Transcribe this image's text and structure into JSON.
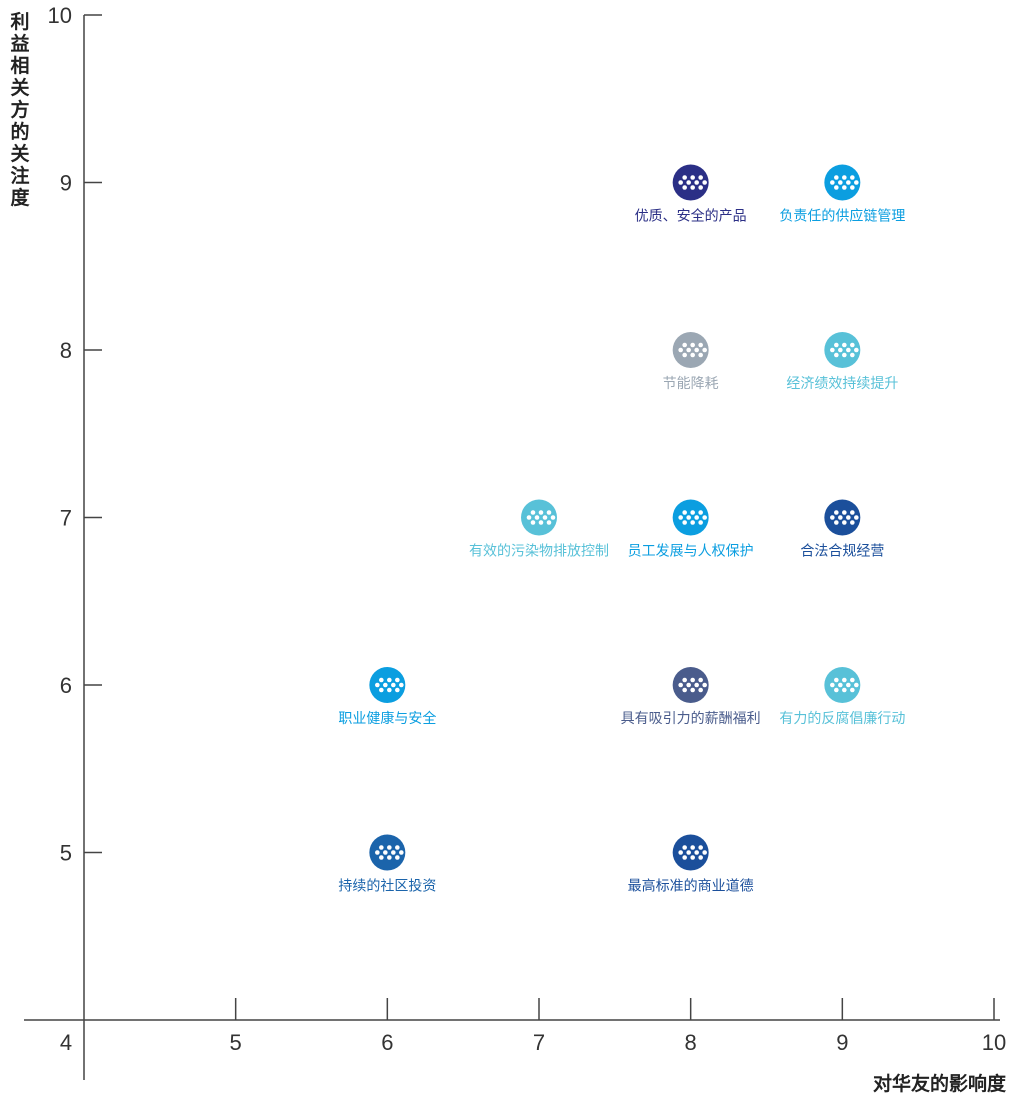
{
  "chart_data": {
    "type": "scatter",
    "xlabel": "对华友的影响度",
    "ylabel": "利益相关方的关注度",
    "xlim": [
      4,
      10
    ],
    "ylim": [
      4,
      10
    ],
    "xticks": [
      "4",
      "5",
      "6",
      "7",
      "8",
      "9",
      "10"
    ],
    "yticks": [
      "5",
      "6",
      "7",
      "8",
      "9",
      "10"
    ],
    "points": [
      {
        "x": 8,
        "y": 9,
        "label": "优质、安全的产品",
        "color": "#2b2f86"
      },
      {
        "x": 9,
        "y": 9,
        "label": "负责任的供应链管理",
        "color": "#0b9ee0"
      },
      {
        "x": 8,
        "y": 8,
        "label": "节能降耗",
        "color": "#9ba7b3"
      },
      {
        "x": 9,
        "y": 8,
        "label": "经济绩效持续提升",
        "color": "#58c1d8"
      },
      {
        "x": 7,
        "y": 7,
        "label": "有效的污染物排放控制",
        "color": "#58c1d8"
      },
      {
        "x": 8,
        "y": 7,
        "label": "员工发展与人权保护",
        "color": "#0b9ee0"
      },
      {
        "x": 9,
        "y": 7,
        "label": "合法合规经营",
        "color": "#1b4f9b"
      },
      {
        "x": 6,
        "y": 6,
        "label": "职业健康与安全",
        "color": "#0b9ee0"
      },
      {
        "x": 8,
        "y": 6,
        "label": "具有吸引力的薪酬福利",
        "color": "#4a5c8c"
      },
      {
        "x": 9,
        "y": 6,
        "label": "有力的反腐倡廉行动",
        "color": "#58c1d8"
      },
      {
        "x": 6,
        "y": 5,
        "label": "持续的社区投资",
        "color": "#1b64ab"
      },
      {
        "x": 8,
        "y": 5,
        "label": "最高标准的商业道德",
        "color": "#1b4f9b"
      }
    ]
  }
}
